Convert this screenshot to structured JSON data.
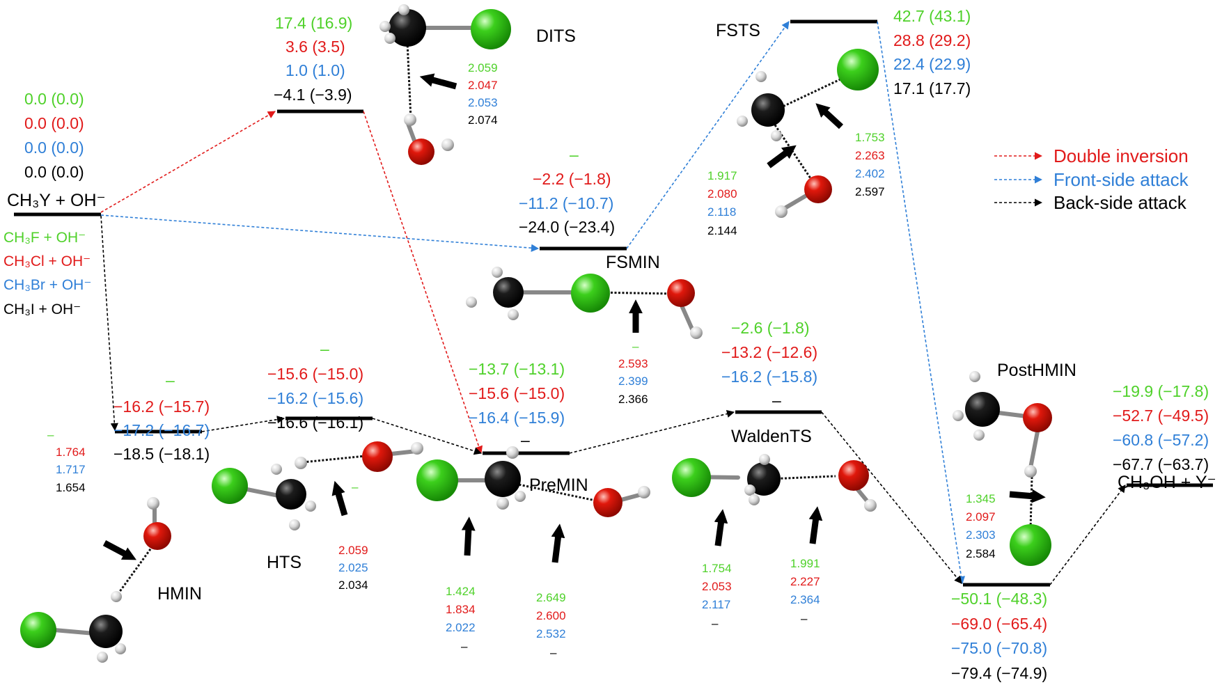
{
  "legend": {
    "double_inversion": "Double inversion",
    "front_side": "Front-side attack",
    "back_side": "Back-side attack",
    "colors": {
      "red": "#e11a1a",
      "blue": "#2f7fd7",
      "black": "#000000",
      "green": "#4fd12a"
    }
  },
  "reactants": {
    "name": "CH₃Y + OH⁻",
    "energies": [
      "0.0 (0.0)",
      "0.0 (0.0)",
      "0.0 (0.0)",
      "0.0 (0.0)"
    ],
    "species": [
      "CH₃F + OH⁻",
      "CH₃Cl + OH⁻",
      "CH₃Br + OH⁻",
      "CH₃I + OH⁻"
    ]
  },
  "DITS": {
    "name": "DITS",
    "energies": [
      "17.4 (16.9)",
      "3.6  (3.5)",
      "1.0  (1.0)",
      "−4.1 (−3.9)"
    ],
    "bonds": [
      "2.059",
      "2.047",
      "2.053",
      "2.074"
    ]
  },
  "FSTS": {
    "name": "FSTS",
    "energies": [
      "42.7 (43.1)",
      "28.8 (29.2)",
      "22.4 (22.9)",
      "17.1 (17.7)"
    ],
    "bonds_left": [
      "1.917",
      "2.080",
      "2.118",
      "2.144"
    ],
    "bonds_right": [
      "1.753",
      "2.263",
      "2.402",
      "2.597"
    ]
  },
  "FSMIN": {
    "name": "FSMIN",
    "energies": [
      "–",
      "−2.2  (−1.8)",
      "−11.2 (−10.7)",
      "−24.0 (−23.4)"
    ],
    "bonds": [
      "–",
      "2.593",
      "2.399",
      "2.366"
    ]
  },
  "HMIN": {
    "name": "HMIN",
    "energies": [
      "–",
      "−16.2 (−15.7)",
      "−17.2 (−16.7)",
      "−18.5 (−18.1)"
    ],
    "bonds": [
      "–",
      "1.764",
      "1.717",
      "1.654"
    ]
  },
  "HTS": {
    "name": "HTS",
    "energies": [
      "–",
      "−15.6 (−15.0)",
      "−16.2 (−15.6)",
      "−16.6 (−16.1)"
    ],
    "bonds": [
      "–",
      "2.059",
      "2.025",
      "2.034"
    ]
  },
  "PreMIN": {
    "name": "PreMIN",
    "energies": [
      "−13.7 (−13.1)",
      "−15.6 (−15.0)",
      "−16.4 (−15.9)",
      "–"
    ],
    "bonds_left": [
      "1.424",
      "1.834",
      "2.022",
      "–"
    ],
    "bonds_right": [
      "2.649",
      "2.600",
      "2.532",
      "–"
    ]
  },
  "WaldenTS": {
    "name": "WaldenTS",
    "energies": [
      "−2.6   (−1.8)",
      "−13.2 (−12.6)",
      "−16.2 (−15.8)",
      "–"
    ],
    "bonds_left": [
      "1.754",
      "2.053",
      "2.117",
      "–"
    ],
    "bonds_right": [
      "1.991",
      "2.227",
      "2.364",
      "–"
    ]
  },
  "PostHMIN": {
    "name": "PostHMIN",
    "energies": [
      "−50.1 (−48.3)",
      "−69.0 (−65.4)",
      "−75.0 (−70.8)",
      "−79.4 (−74.9)"
    ],
    "bonds": [
      "1.345",
      "2.097",
      "2.303",
      "2.584"
    ]
  },
  "products": {
    "name": "CH₃OH + Y⁻",
    "energies": [
      "−19.9 (−17.8)",
      "−52.7 (−49.5)",
      "−60.8 (−57.2)",
      "−67.7 (−63.7)"
    ]
  }
}
